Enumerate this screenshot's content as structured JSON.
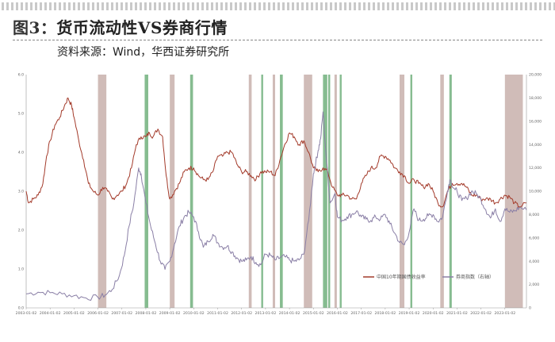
{
  "header": {
    "figure_label": "图3：",
    "title": "货币流动性VS券商行情",
    "source": "资料来源：Wind，华西证券研究所"
  },
  "chart_data": {
    "type": "line",
    "x_ticks": [
      "2003-01-02",
      "2004-01-02",
      "2005-01-02",
      "2006-01-02",
      "2007-01-02",
      "2008-01-02",
      "2009-01-02",
      "2010-01-02",
      "2011-01-02",
      "2012-01-02",
      "2013-01-02",
      "2014-01-02",
      "2015-01-02",
      "2016-01-02",
      "2017-01-02",
      "2018-01-02",
      "2019-01-02",
      "2020-01-02",
      "2021-01-02",
      "2022-01-02",
      "2023-01-02"
    ],
    "y_left_ticks": [
      "0.0",
      "1.0",
      "2.0",
      "3.0",
      "4.0",
      "5.0",
      "6.0"
    ],
    "y_left_range": [
      0,
      6
    ],
    "y_right_ticks": [
      "0",
      "2,000",
      "4,000",
      "6,000",
      "8,000",
      "10,000",
      "12,000",
      "14,000",
      "16,000",
      "18,000",
      "20,000"
    ],
    "y_right_range": [
      0,
      20000
    ],
    "x_range": [
      2003.0,
      2023.9
    ],
    "series": [
      {
        "name": "中国10年期国债收益率",
        "axis": "left",
        "color": "#a33a2a",
        "points": [
          [
            2003.0,
            3.0
          ],
          [
            2003.1,
            2.7
          ],
          [
            2003.3,
            2.8
          ],
          [
            2003.5,
            2.9
          ],
          [
            2003.7,
            3.2
          ],
          [
            2003.85,
            3.9
          ],
          [
            2004.0,
            4.3
          ],
          [
            2004.2,
            4.7
          ],
          [
            2004.4,
            4.9
          ],
          [
            2004.6,
            5.2
          ],
          [
            2004.75,
            5.4
          ],
          [
            2004.9,
            5.2
          ],
          [
            2005.0,
            4.9
          ],
          [
            2005.2,
            4.3
          ],
          [
            2005.4,
            3.8
          ],
          [
            2005.6,
            3.2
          ],
          [
            2005.8,
            3.0
          ],
          [
            2006.0,
            2.9
          ],
          [
            2006.2,
            3.1
          ],
          [
            2006.4,
            3.0
          ],
          [
            2006.6,
            2.8
          ],
          [
            2006.8,
            2.9
          ],
          [
            2007.0,
            3.0
          ],
          [
            2007.2,
            3.2
          ],
          [
            2007.4,
            3.6
          ],
          [
            2007.6,
            4.2
          ],
          [
            2007.8,
            4.4
          ],
          [
            2008.0,
            4.4
          ],
          [
            2008.15,
            4.5
          ],
          [
            2008.3,
            4.4
          ],
          [
            2008.5,
            4.6
          ],
          [
            2008.7,
            4.4
          ],
          [
            2008.85,
            3.4
          ],
          [
            2009.0,
            2.8
          ],
          [
            2009.2,
            3.0
          ],
          [
            2009.4,
            3.2
          ],
          [
            2009.6,
            3.5
          ],
          [
            2009.8,
            3.6
          ],
          [
            2010.0,
            3.6
          ],
          [
            2010.2,
            3.4
          ],
          [
            2010.4,
            3.3
          ],
          [
            2010.6,
            3.3
          ],
          [
            2010.8,
            3.5
          ],
          [
            2011.0,
            3.9
          ],
          [
            2011.2,
            3.9
          ],
          [
            2011.4,
            4.0
          ],
          [
            2011.6,
            4.0
          ],
          [
            2011.8,
            3.7
          ],
          [
            2012.0,
            3.5
          ],
          [
            2012.2,
            3.5
          ],
          [
            2012.4,
            3.4
          ],
          [
            2012.6,
            3.3
          ],
          [
            2012.8,
            3.5
          ],
          [
            2013.0,
            3.5
          ],
          [
            2013.2,
            3.5
          ],
          [
            2013.4,
            3.4
          ],
          [
            2013.6,
            3.8
          ],
          [
            2013.8,
            4.2
          ],
          [
            2014.0,
            4.5
          ],
          [
            2014.2,
            4.4
          ],
          [
            2014.4,
            4.2
          ],
          [
            2014.6,
            4.3
          ],
          [
            2014.8,
            4.0
          ],
          [
            2015.0,
            3.6
          ],
          [
            2015.2,
            3.5
          ],
          [
            2015.4,
            3.6
          ],
          [
            2015.6,
            3.5
          ],
          [
            2015.8,
            3.1
          ],
          [
            2016.0,
            2.9
          ],
          [
            2016.2,
            2.9
          ],
          [
            2016.4,
            2.9
          ],
          [
            2016.6,
            2.8
          ],
          [
            2016.8,
            2.8
          ],
          [
            2017.0,
            3.2
          ],
          [
            2017.2,
            3.4
          ],
          [
            2017.4,
            3.6
          ],
          [
            2017.6,
            3.6
          ],
          [
            2017.8,
            3.9
          ],
          [
            2018.0,
            3.9
          ],
          [
            2018.2,
            3.8
          ],
          [
            2018.4,
            3.6
          ],
          [
            2018.6,
            3.5
          ],
          [
            2018.8,
            3.4
          ],
          [
            2019.0,
            3.2
          ],
          [
            2019.2,
            3.3
          ],
          [
            2019.4,
            3.2
          ],
          [
            2019.6,
            3.1
          ],
          [
            2019.8,
            3.2
          ],
          [
            2020.0,
            3.0
          ],
          [
            2020.2,
            2.7
          ],
          [
            2020.4,
            2.6
          ],
          [
            2020.6,
            3.0
          ],
          [
            2020.8,
            3.2
          ],
          [
            2021.0,
            3.2
          ],
          [
            2021.2,
            3.2
          ],
          [
            2021.4,
            3.1
          ],
          [
            2021.6,
            2.9
          ],
          [
            2021.8,
            2.9
          ],
          [
            2022.0,
            2.8
          ],
          [
            2022.2,
            2.8
          ],
          [
            2022.4,
            2.8
          ],
          [
            2022.6,
            2.7
          ],
          [
            2022.8,
            2.8
          ],
          [
            2023.0,
            2.9
          ],
          [
            2023.2,
            2.85
          ],
          [
            2023.4,
            2.7
          ],
          [
            2023.6,
            2.6
          ],
          [
            2023.9,
            2.7
          ]
        ]
      },
      {
        "name": "券商指数（右轴）",
        "axis": "right",
        "color": "#8a7fa6",
        "points": [
          [
            2003.0,
            1200
          ],
          [
            2003.5,
            1350
          ],
          [
            2004.0,
            1300
          ],
          [
            2004.5,
            1200
          ],
          [
            2005.0,
            1050
          ],
          [
            2005.5,
            850
          ],
          [
            2006.0,
            900
          ],
          [
            2006.3,
            1100
          ],
          [
            2006.6,
            1600
          ],
          [
            2006.9,
            2800
          ],
          [
            2007.1,
            4500
          ],
          [
            2007.3,
            7000
          ],
          [
            2007.5,
            9000
          ],
          [
            2007.7,
            12000
          ],
          [
            2007.8,
            11500
          ],
          [
            2008.0,
            9000
          ],
          [
            2008.2,
            7000
          ],
          [
            2008.4,
            5500
          ],
          [
            2008.6,
            4000
          ],
          [
            2008.8,
            3300
          ],
          [
            2009.0,
            4000
          ],
          [
            2009.2,
            5500
          ],
          [
            2009.4,
            7000
          ],
          [
            2009.6,
            7800
          ],
          [
            2009.8,
            8200
          ],
          [
            2010.0,
            7800
          ],
          [
            2010.2,
            6500
          ],
          [
            2010.4,
            5200
          ],
          [
            2010.6,
            5700
          ],
          [
            2010.8,
            6300
          ],
          [
            2011.0,
            5600
          ],
          [
            2011.2,
            5200
          ],
          [
            2011.4,
            5300
          ],
          [
            2011.6,
            4800
          ],
          [
            2011.8,
            4300
          ],
          [
            2012.0,
            4000
          ],
          [
            2012.2,
            4100
          ],
          [
            2012.4,
            4400
          ],
          [
            2012.6,
            3900
          ],
          [
            2012.8,
            3700
          ],
          [
            2013.0,
            4600
          ],
          [
            2013.2,
            4500
          ],
          [
            2013.4,
            4100
          ],
          [
            2013.6,
            4300
          ],
          [
            2013.8,
            4400
          ],
          [
            2014.0,
            4100
          ],
          [
            2014.2,
            4000
          ],
          [
            2014.4,
            4100
          ],
          [
            2014.6,
            4600
          ],
          [
            2014.8,
            7500
          ],
          [
            2015.0,
            11500
          ],
          [
            2015.1,
            12500
          ],
          [
            2015.2,
            13500
          ],
          [
            2015.3,
            14500
          ],
          [
            2015.4,
            16800
          ],
          [
            2015.55,
            12500
          ],
          [
            2015.7,
            9000
          ],
          [
            2015.9,
            9800
          ],
          [
            2016.0,
            7800
          ],
          [
            2016.2,
            7500
          ],
          [
            2016.4,
            7800
          ],
          [
            2016.6,
            8000
          ],
          [
            2016.8,
            8300
          ],
          [
            2017.0,
            7800
          ],
          [
            2017.2,
            7600
          ],
          [
            2017.4,
            7500
          ],
          [
            2017.6,
            7800
          ],
          [
            2017.8,
            7600
          ],
          [
            2018.0,
            8000
          ],
          [
            2018.2,
            7200
          ],
          [
            2018.4,
            6400
          ],
          [
            2018.6,
            5600
          ],
          [
            2018.8,
            5400
          ],
          [
            2019.0,
            6500
          ],
          [
            2019.2,
            8500
          ],
          [
            2019.4,
            7500
          ],
          [
            2019.6,
            7600
          ],
          [
            2019.8,
            7900
          ],
          [
            2020.0,
            8000
          ],
          [
            2020.2,
            7400
          ],
          [
            2020.4,
            7800
          ],
          [
            2020.6,
            10000
          ],
          [
            2020.7,
            11000
          ],
          [
            2020.9,
            10200
          ],
          [
            2021.0,
            10000
          ],
          [
            2021.2,
            9200
          ],
          [
            2021.4,
            9400
          ],
          [
            2021.6,
            10000
          ],
          [
            2021.8,
            9800
          ],
          [
            2022.0,
            9300
          ],
          [
            2022.2,
            8400
          ],
          [
            2022.4,
            7700
          ],
          [
            2022.6,
            8500
          ],
          [
            2022.8,
            7400
          ],
          [
            2023.0,
            8500
          ],
          [
            2023.2,
            8200
          ],
          [
            2023.4,
            8300
          ],
          [
            2023.6,
            8600
          ],
          [
            2023.9,
            8400
          ]
        ]
      }
    ],
    "shaded_bands": [
      {
        "kind": "tightening",
        "color": "#cdb8b4",
        "start": 2006.0,
        "end": 2006.35
      },
      {
        "kind": "easing",
        "color": "#7fb88a",
        "start": 2007.95,
        "end": 2008.1
      },
      {
        "kind": "tightening",
        "color": "#cdb8b4",
        "start": 2009.0,
        "end": 2009.2
      },
      {
        "kind": "easing",
        "color": "#7fb88a",
        "start": 2009.85,
        "end": 2009.97
      },
      {
        "kind": "tightening",
        "color": "#cdb8b4",
        "start": 2012.3,
        "end": 2012.42
      },
      {
        "kind": "easing",
        "color": "#7fb88a",
        "start": 2012.82,
        "end": 2012.9
      },
      {
        "kind": "tightening",
        "color": "#cdb8b4",
        "start": 2013.3,
        "end": 2013.4
      },
      {
        "kind": "easing",
        "color": "#7fb88a",
        "start": 2013.6,
        "end": 2013.72
      },
      {
        "kind": "tightening",
        "color": "#cdb8b4",
        "start": 2014.6,
        "end": 2014.95
      },
      {
        "kind": "easing",
        "color": "#7fb88a",
        "start": 2015.4,
        "end": 2015.58
      },
      {
        "kind": "easing",
        "color": "#7fb88a",
        "start": 2015.62,
        "end": 2015.7
      },
      {
        "kind": "tightening",
        "color": "#cdb8b4",
        "start": 2015.88,
        "end": 2015.98
      },
      {
        "kind": "easing",
        "color": "#7fb88a",
        "start": 2016.1,
        "end": 2016.18
      },
      {
        "kind": "tightening",
        "color": "#cdb8b4",
        "start": 2018.6,
        "end": 2018.8
      },
      {
        "kind": "easing",
        "color": "#7fb88a",
        "start": 2019.05,
        "end": 2019.13
      },
      {
        "kind": "tightening",
        "color": "#cdb8b4",
        "start": 2020.3,
        "end": 2020.45
      },
      {
        "kind": "easing",
        "color": "#7fb88a",
        "start": 2020.68,
        "end": 2020.78
      },
      {
        "kind": "tightening",
        "color": "#cdb8b4",
        "start": 2023.0,
        "end": 2023.75
      }
    ],
    "legend": {
      "placement": "bottom-right",
      "items": [
        "中国10年期国债收益率",
        "券商指数（右轴）"
      ]
    }
  }
}
